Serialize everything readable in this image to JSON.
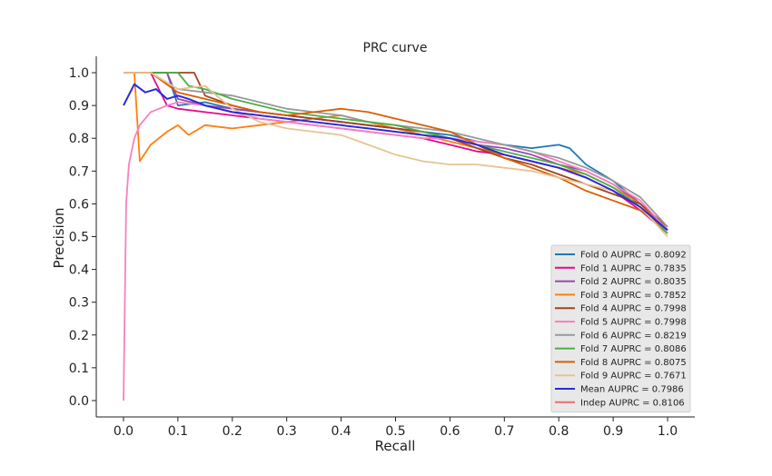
{
  "chart_data": {
    "type": "line",
    "title": "PRC curve",
    "xlabel": "Recall",
    "ylabel": "Precision",
    "xlim": [
      -0.05,
      1.05
    ],
    "ylim": [
      -0.05,
      1.05
    ],
    "xticks": [
      "0.0",
      "0.1",
      "0.2",
      "0.3",
      "0.4",
      "0.5",
      "0.6",
      "0.7",
      "0.8",
      "0.9",
      "1.0"
    ],
    "yticks": [
      "0.0",
      "0.1",
      "0.2",
      "0.3",
      "0.4",
      "0.5",
      "0.6",
      "0.7",
      "0.8",
      "0.9",
      "1.0"
    ],
    "grid": false,
    "legend_position": "lower-right",
    "series": [
      {
        "name": "Fold 0 AUPRC = 0.8092",
        "color": "#1f77b4",
        "points": [
          [
            0,
            1.0
          ],
          [
            0.02,
            1.0
          ],
          [
            0.05,
            1.0
          ],
          [
            0.08,
            1.0
          ],
          [
            0.1,
            0.9
          ],
          [
            0.15,
            0.91
          ],
          [
            0.2,
            0.89
          ],
          [
            0.25,
            0.88
          ],
          [
            0.3,
            0.87
          ],
          [
            0.35,
            0.86
          ],
          [
            0.4,
            0.85
          ],
          [
            0.45,
            0.84
          ],
          [
            0.5,
            0.83
          ],
          [
            0.55,
            0.82
          ],
          [
            0.6,
            0.81
          ],
          [
            0.65,
            0.79
          ],
          [
            0.7,
            0.78
          ],
          [
            0.75,
            0.77
          ],
          [
            0.8,
            0.78
          ],
          [
            0.82,
            0.77
          ],
          [
            0.85,
            0.72
          ],
          [
            0.9,
            0.67
          ],
          [
            0.95,
            0.6
          ],
          [
            1.0,
            0.52
          ]
        ]
      },
      {
        "name": "Fold 1 AUPRC = 0.7835",
        "color": "#e7098b",
        "points": [
          [
            0,
            1.0
          ],
          [
            0.03,
            1.0
          ],
          [
            0.05,
            1.0
          ],
          [
            0.08,
            0.9
          ],
          [
            0.1,
            0.89
          ],
          [
            0.15,
            0.88
          ],
          [
            0.2,
            0.87
          ],
          [
            0.25,
            0.86
          ],
          [
            0.3,
            0.85
          ],
          [
            0.35,
            0.84
          ],
          [
            0.4,
            0.83
          ],
          [
            0.45,
            0.82
          ],
          [
            0.5,
            0.81
          ],
          [
            0.55,
            0.8
          ],
          [
            0.6,
            0.78
          ],
          [
            0.65,
            0.76
          ],
          [
            0.7,
            0.75
          ],
          [
            0.75,
            0.73
          ],
          [
            0.8,
            0.71
          ],
          [
            0.85,
            0.68
          ],
          [
            0.9,
            0.64
          ],
          [
            0.95,
            0.58
          ],
          [
            1.0,
            0.51
          ]
        ]
      },
      {
        "name": "Fold 2 AUPRC = 0.8035",
        "color": "#9a49ad",
        "points": [
          [
            0,
            1.0
          ],
          [
            0.04,
            1.0
          ],
          [
            0.08,
            1.0
          ],
          [
            0.1,
            0.92
          ],
          [
            0.15,
            0.9
          ],
          [
            0.2,
            0.89
          ],
          [
            0.25,
            0.88
          ],
          [
            0.3,
            0.87
          ],
          [
            0.35,
            0.86
          ],
          [
            0.4,
            0.85
          ],
          [
            0.45,
            0.84
          ],
          [
            0.5,
            0.83
          ],
          [
            0.55,
            0.82
          ],
          [
            0.6,
            0.8
          ],
          [
            0.65,
            0.78
          ],
          [
            0.7,
            0.77
          ],
          [
            0.75,
            0.75
          ],
          [
            0.8,
            0.72
          ],
          [
            0.85,
            0.7
          ],
          [
            0.9,
            0.66
          ],
          [
            0.95,
            0.6
          ],
          [
            1.0,
            0.52
          ]
        ]
      },
      {
        "name": "Fold 3 AUPRC = 0.7852",
        "color": "#ff7f0e",
        "points": [
          [
            0,
            1.0
          ],
          [
            0.02,
            1.0
          ],
          [
            0.03,
            0.73
          ],
          [
            0.05,
            0.78
          ],
          [
            0.08,
            0.82
          ],
          [
            0.1,
            0.84
          ],
          [
            0.12,
            0.81
          ],
          [
            0.15,
            0.84
          ],
          [
            0.2,
            0.83
          ],
          [
            0.25,
            0.84
          ],
          [
            0.3,
            0.85
          ],
          [
            0.35,
            0.86
          ],
          [
            0.4,
            0.87
          ],
          [
            0.45,
            0.85
          ],
          [
            0.5,
            0.83
          ],
          [
            0.55,
            0.81
          ],
          [
            0.6,
            0.79
          ],
          [
            0.65,
            0.77
          ],
          [
            0.7,
            0.75
          ],
          [
            0.75,
            0.73
          ],
          [
            0.8,
            0.71
          ],
          [
            0.85,
            0.69
          ],
          [
            0.9,
            0.65
          ],
          [
            0.95,
            0.6
          ],
          [
            1.0,
            0.51
          ]
        ]
      },
      {
        "name": "Fold 4 AUPRC = 0.7998",
        "color": "#a0451f",
        "points": [
          [
            0,
            1.0
          ],
          [
            0.05,
            1.0
          ],
          [
            0.1,
            1.0
          ],
          [
            0.13,
            1.0
          ],
          [
            0.15,
            0.93
          ],
          [
            0.2,
            0.9
          ],
          [
            0.25,
            0.88
          ],
          [
            0.3,
            0.87
          ],
          [
            0.35,
            0.86
          ],
          [
            0.4,
            0.85
          ],
          [
            0.45,
            0.84
          ],
          [
            0.5,
            0.83
          ],
          [
            0.55,
            0.82
          ],
          [
            0.6,
            0.8
          ],
          [
            0.65,
            0.77
          ],
          [
            0.7,
            0.74
          ],
          [
            0.75,
            0.72
          ],
          [
            0.8,
            0.69
          ],
          [
            0.85,
            0.66
          ],
          [
            0.9,
            0.63
          ],
          [
            0.95,
            0.6
          ],
          [
            1.0,
            0.53
          ]
        ]
      },
      {
        "name": "Fold 5 AUPRC = 0.7998",
        "color": "#f781bf",
        "points": [
          [
            0,
            0.0
          ],
          [
            0.005,
            0.6
          ],
          [
            0.01,
            0.72
          ],
          [
            0.02,
            0.8
          ],
          [
            0.03,
            0.84
          ],
          [
            0.05,
            0.88
          ],
          [
            0.08,
            0.9
          ],
          [
            0.1,
            0.91
          ],
          [
            0.15,
            0.9
          ],
          [
            0.2,
            0.88
          ],
          [
            0.25,
            0.86
          ],
          [
            0.3,
            0.85
          ],
          [
            0.35,
            0.84
          ],
          [
            0.4,
            0.83
          ],
          [
            0.45,
            0.82
          ],
          [
            0.5,
            0.81
          ],
          [
            0.55,
            0.8
          ],
          [
            0.6,
            0.8
          ],
          [
            0.65,
            0.79
          ],
          [
            0.7,
            0.78
          ],
          [
            0.75,
            0.76
          ],
          [
            0.8,
            0.73
          ],
          [
            0.85,
            0.7
          ],
          [
            0.9,
            0.66
          ],
          [
            0.95,
            0.61
          ],
          [
            1.0,
            0.52
          ]
        ]
      },
      {
        "name": "Fold 6 AUPRC = 0.8219",
        "color": "#999999",
        "points": [
          [
            0,
            1.0
          ],
          [
            0.05,
            1.0
          ],
          [
            0.1,
            0.95
          ],
          [
            0.15,
            0.94
          ],
          [
            0.2,
            0.93
          ],
          [
            0.25,
            0.91
          ],
          [
            0.3,
            0.89
          ],
          [
            0.35,
            0.88
          ],
          [
            0.4,
            0.87
          ],
          [
            0.45,
            0.85
          ],
          [
            0.5,
            0.84
          ],
          [
            0.55,
            0.83
          ],
          [
            0.6,
            0.82
          ],
          [
            0.65,
            0.8
          ],
          [
            0.7,
            0.78
          ],
          [
            0.75,
            0.76
          ],
          [
            0.8,
            0.74
          ],
          [
            0.85,
            0.71
          ],
          [
            0.9,
            0.67
          ],
          [
            0.95,
            0.62
          ],
          [
            1.0,
            0.53
          ]
        ]
      },
      {
        "name": "Fold 7 AUPRC = 0.8086",
        "color": "#4daf4a",
        "points": [
          [
            0,
            1.0
          ],
          [
            0.05,
            1.0
          ],
          [
            0.1,
            1.0
          ],
          [
            0.12,
            0.96
          ],
          [
            0.15,
            0.95
          ],
          [
            0.2,
            0.92
          ],
          [
            0.25,
            0.9
          ],
          [
            0.3,
            0.88
          ],
          [
            0.35,
            0.87
          ],
          [
            0.4,
            0.86
          ],
          [
            0.45,
            0.85
          ],
          [
            0.5,
            0.84
          ],
          [
            0.55,
            0.82
          ],
          [
            0.6,
            0.8
          ],
          [
            0.65,
            0.78
          ],
          [
            0.7,
            0.76
          ],
          [
            0.75,
            0.74
          ],
          [
            0.8,
            0.72
          ],
          [
            0.85,
            0.69
          ],
          [
            0.9,
            0.65
          ],
          [
            0.95,
            0.59
          ],
          [
            1.0,
            0.51
          ]
        ]
      },
      {
        "name": "Fold 8 AUPRC = 0.8075",
        "color": "#d95f02",
        "points": [
          [
            0,
            1.0
          ],
          [
            0.05,
            1.0
          ],
          [
            0.1,
            0.94
          ],
          [
            0.15,
            0.92
          ],
          [
            0.2,
            0.9
          ],
          [
            0.25,
            0.88
          ],
          [
            0.3,
            0.87
          ],
          [
            0.35,
            0.88
          ],
          [
            0.4,
            0.89
          ],
          [
            0.45,
            0.88
          ],
          [
            0.5,
            0.86
          ],
          [
            0.55,
            0.84
          ],
          [
            0.6,
            0.82
          ],
          [
            0.65,
            0.78
          ],
          [
            0.7,
            0.74
          ],
          [
            0.75,
            0.71
          ],
          [
            0.8,
            0.68
          ],
          [
            0.85,
            0.64
          ],
          [
            0.9,
            0.61
          ],
          [
            0.95,
            0.58
          ],
          [
            1.0,
            0.52
          ]
        ]
      },
      {
        "name": "Fold 9 AUPRC = 0.7671",
        "color": "#e5c494",
        "points": [
          [
            0,
            1.0
          ],
          [
            0.05,
            1.0
          ],
          [
            0.1,
            0.95
          ],
          [
            0.15,
            0.96
          ],
          [
            0.2,
            0.89
          ],
          [
            0.25,
            0.85
          ],
          [
            0.3,
            0.83
          ],
          [
            0.35,
            0.82
          ],
          [
            0.4,
            0.81
          ],
          [
            0.45,
            0.78
          ],
          [
            0.5,
            0.75
          ],
          [
            0.55,
            0.73
          ],
          [
            0.6,
            0.72
          ],
          [
            0.65,
            0.72
          ],
          [
            0.7,
            0.71
          ],
          [
            0.75,
            0.7
          ],
          [
            0.8,
            0.68
          ],
          [
            0.85,
            0.66
          ],
          [
            0.9,
            0.64
          ],
          [
            0.95,
            0.59
          ],
          [
            1.0,
            0.5
          ]
        ]
      },
      {
        "name": "Mean AUPRC = 0.7986",
        "color": "#2b2bdb",
        "points": [
          [
            0,
            0.9
          ],
          [
            0.02,
            0.965
          ],
          [
            0.04,
            0.94
          ],
          [
            0.06,
            0.95
          ],
          [
            0.08,
            0.92
          ],
          [
            0.1,
            0.93
          ],
          [
            0.12,
            0.92
          ],
          [
            0.15,
            0.9
          ],
          [
            0.2,
            0.88
          ],
          [
            0.25,
            0.87
          ],
          [
            0.3,
            0.86
          ],
          [
            0.35,
            0.85
          ],
          [
            0.4,
            0.84
          ],
          [
            0.45,
            0.83
          ],
          [
            0.5,
            0.82
          ],
          [
            0.55,
            0.81
          ],
          [
            0.6,
            0.8
          ],
          [
            0.65,
            0.78
          ],
          [
            0.7,
            0.75
          ],
          [
            0.75,
            0.73
          ],
          [
            0.8,
            0.71
          ],
          [
            0.85,
            0.68
          ],
          [
            0.9,
            0.64
          ],
          [
            0.95,
            0.59
          ],
          [
            1.0,
            0.52
          ]
        ]
      },
      {
        "name": "Indep AUPRC = 0.8106",
        "color": "#f26b6b",
        "points": []
      }
    ]
  }
}
